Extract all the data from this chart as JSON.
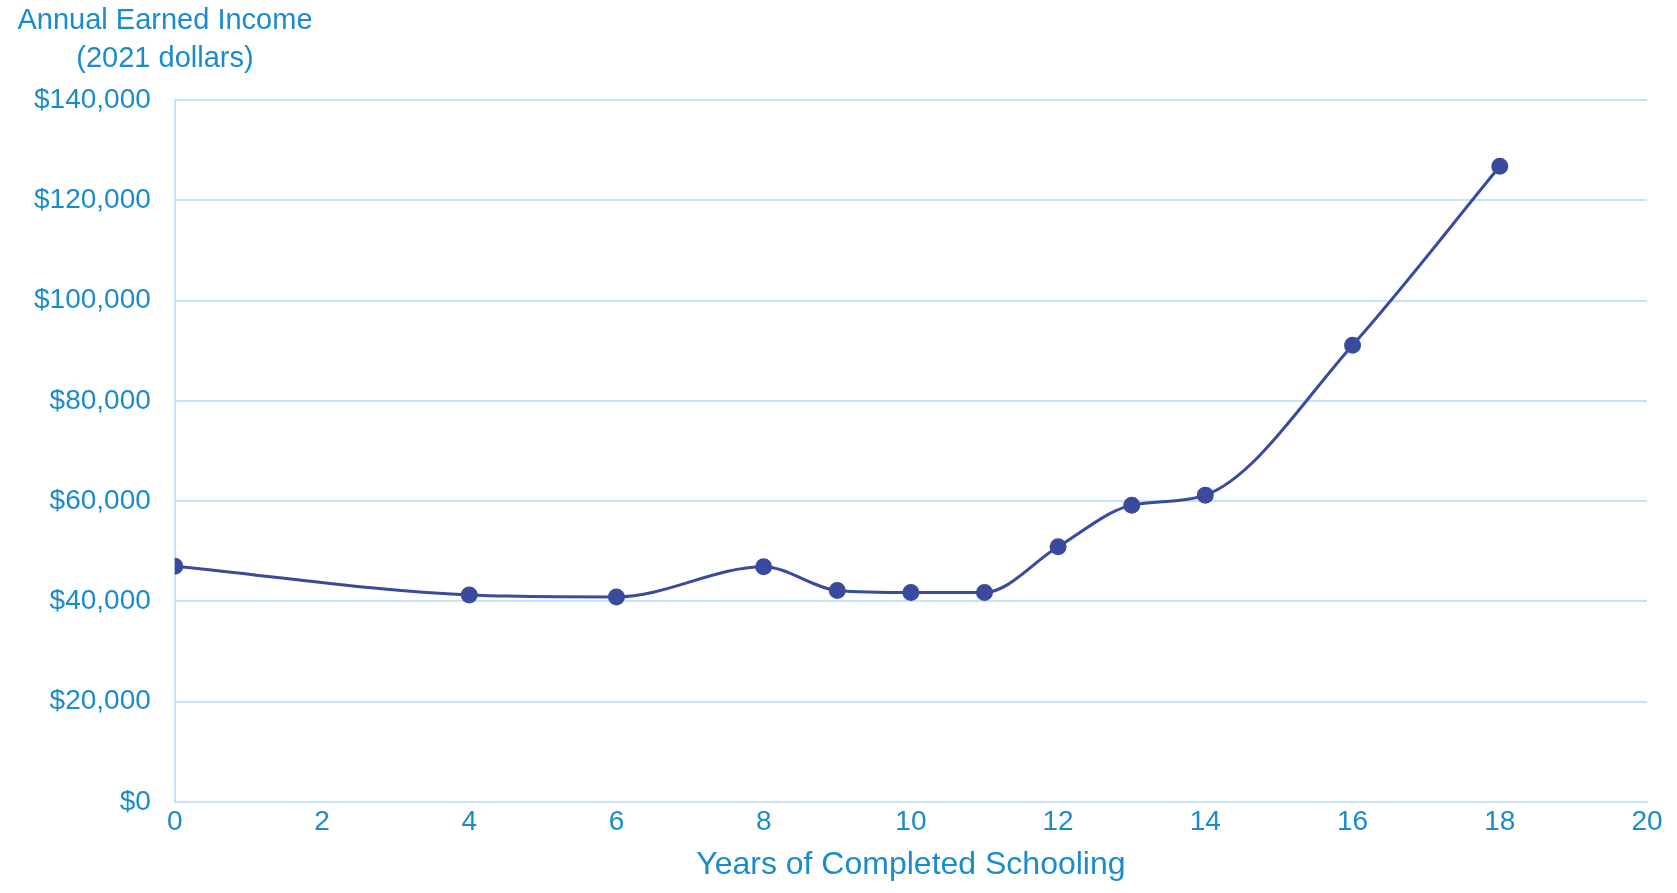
{
  "chart_data": {
    "type": "line",
    "xlabel": "Years of Completed Schooling",
    "ylabel": "Annual Earned Income\n(2021 dollars)",
    "x": [
      0,
      4,
      6,
      8,
      9,
      10,
      11,
      12,
      13,
      14,
      16,
      18
    ],
    "series": [
      {
        "color": "#3a4a9c",
        "values": [
          47000,
          41300,
          40900,
          46900,
          42200,
          41800,
          41800,
          50900,
          59200,
          61200,
          91100,
          126800
        ]
      }
    ],
    "xlim": [
      0,
      20
    ],
    "xticks": [
      0,
      2,
      4,
      6,
      8,
      10,
      12,
      14,
      16,
      18,
      20
    ],
    "ylim": [
      0,
      140000
    ],
    "yticks": [
      {
        "value": 0,
        "label": "$0"
      },
      {
        "value": 20000,
        "label": "$20,000"
      },
      {
        "value": 40000,
        "label": "$40,000"
      },
      {
        "value": 60000,
        "label": "$60,000"
      },
      {
        "value": 80000,
        "label": "$80,000"
      },
      {
        "value": 100000,
        "label": "$100,000"
      },
      {
        "value": 120000,
        "label": "$120,000"
      },
      {
        "value": 140000,
        "label": "$140,000"
      }
    ],
    "grid": "y",
    "legend": false,
    "marker": "circle",
    "line_style": "solid"
  }
}
